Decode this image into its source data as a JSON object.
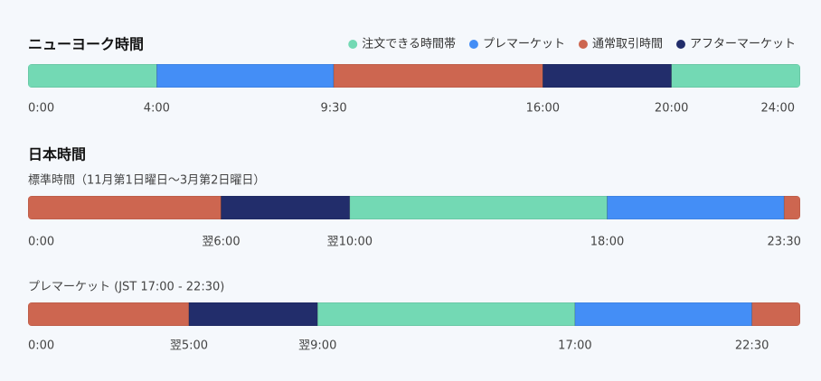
{
  "chart_data": {
    "type": "timeline",
    "title": "ニューヨーク時間",
    "section_title": "日本時間",
    "series": [
      {
        "name": "注文できる時間帯",
        "color": "#73d9b4"
      },
      {
        "name": "プレマーケット",
        "color": "#448ef6"
      },
      {
        "name": "通常取引時間",
        "color": "#cd6650"
      },
      {
        "name": "アフターマーケット",
        "color": "#222d6b"
      }
    ],
    "bars": [
      {
        "xlim": [
          0,
          24
        ],
        "xticks": [
          {
            "value": 0,
            "label": "0:00"
          },
          {
            "value": 4,
            "label": "4:00"
          },
          {
            "value": 9.5,
            "label": "9:30"
          },
          {
            "value": 16,
            "label": "16:00"
          },
          {
            "value": 20,
            "label": "20:00"
          },
          {
            "value": 24,
            "label": "24:00"
          }
        ],
        "segments": [
          {
            "start": 0,
            "end": 4,
            "color": "#73d9b4"
          },
          {
            "start": 4,
            "end": 9.5,
            "color": "#448ef6"
          },
          {
            "start": 9.5,
            "end": 16,
            "color": "#cd6650"
          },
          {
            "start": 16,
            "end": 20,
            "color": "#222d6b"
          },
          {
            "start": 20,
            "end": 24,
            "color": "#73d9b4"
          }
        ]
      },
      {
        "subtitle": "標準時間（11月第1日曜日〜3月第2日曜日）",
        "xlim": [
          0,
          24
        ],
        "xticks": [
          {
            "value": 0,
            "label": "0:00"
          },
          {
            "value": 6,
            "label": "翌6:00"
          },
          {
            "value": 10,
            "label": "翌10:00"
          },
          {
            "value": 18,
            "label": "18:00"
          },
          {
            "value": 23.5,
            "label": "23:30"
          }
        ],
        "segments": [
          {
            "start": 0,
            "end": 6,
            "color": "#cd6650"
          },
          {
            "start": 6,
            "end": 10,
            "color": "#222d6b"
          },
          {
            "start": 10,
            "end": 18,
            "color": "#73d9b4"
          },
          {
            "start": 18,
            "end": 23.5,
            "color": "#448ef6"
          },
          {
            "start": 23.5,
            "end": 24,
            "color": "#cd6650"
          }
        ]
      },
      {
        "subtitle": "プレマーケット (JST 17:00 - 22:30)",
        "xlim": [
          0,
          24
        ],
        "xticks": [
          {
            "value": 0,
            "label": "0:00"
          },
          {
            "value": 5,
            "label": "翌5:00"
          },
          {
            "value": 9,
            "label": "翌9:00"
          },
          {
            "value": 17,
            "label": "17:00"
          },
          {
            "value": 22.5,
            "label": "22:30"
          }
        ],
        "segments": [
          {
            "start": 0,
            "end": 5,
            "color": "#cd6650"
          },
          {
            "start": 5,
            "end": 9,
            "color": "#222d6b"
          },
          {
            "start": 9,
            "end": 17,
            "color": "#73d9b4"
          },
          {
            "start": 17,
            "end": 22.5,
            "color": "#448ef6"
          },
          {
            "start": 22.5,
            "end": 24,
            "color": "#cd6650"
          }
        ]
      }
    ]
  }
}
